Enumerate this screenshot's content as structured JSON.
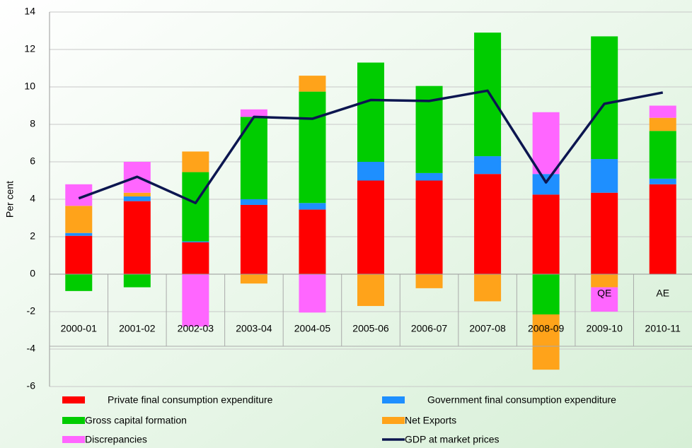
{
  "chart_data": {
    "type": "stacked-bar-line",
    "y_label": "Per cent",
    "categories": [
      "2000-01",
      "2001-02",
      "2002-03",
      "2003-04",
      "2004-05",
      "2005-06",
      "2006-07",
      "2007-08",
      "2008-09",
      "2009-10",
      "2010-11"
    ],
    "series": [
      {
        "name": "Private final consumption expenditure",
        "color": "#ff0000",
        "kind": "bar",
        "values": [
          2.05,
          3.9,
          1.7,
          3.7,
          3.45,
          5.0,
          5.0,
          5.35,
          4.25,
          4.35,
          4.8
        ]
      },
      {
        "name": "Government final consumption expenditure",
        "color": "#1e8fff",
        "kind": "bar",
        "values": [
          0.15,
          0.25,
          0.05,
          0.3,
          0.35,
          1.0,
          0.4,
          0.95,
          1.1,
          1.8,
          0.3
        ]
      },
      {
        "name": "Gross capital formation",
        "color": "#00cc00",
        "kind": "bar",
        "values": [
          -0.9,
          -0.7,
          3.7,
          4.4,
          5.95,
          5.3,
          4.65,
          6.6,
          -2.15,
          6.55,
          2.55
        ]
      },
      {
        "name": "Net Exports",
        "color": "#ffa31a",
        "kind": "bar",
        "values": [
          1.45,
          0.2,
          1.1,
          -0.5,
          0.85,
          -1.7,
          -0.75,
          -1.45,
          -2.95,
          -0.7,
          0.7
        ]
      },
      {
        "name": "Discrepancies",
        "color": "#ff66ff",
        "kind": "bar",
        "values": [
          1.15,
          1.65,
          -2.8,
          0.4,
          -2.05,
          0,
          0,
          0,
          3.3,
          -1.3,
          0.65
        ]
      },
      {
        "name": "GDP at  market prices",
        "color": "#0c1650",
        "kind": "line",
        "values": [
          4.05,
          5.2,
          3.8,
          8.4,
          8.3,
          9.3,
          9.25,
          9.8,
          4.9,
          9.1,
          9.7
        ]
      }
    ],
    "annotations": [
      {
        "category": 9,
        "text": "QE"
      },
      {
        "category": 10,
        "text": "AE"
      }
    ],
    "ylim": [
      -6,
      14
    ],
    "yticks": [
      -6,
      -4,
      -2,
      0,
      2,
      4,
      6,
      8,
      10,
      12,
      14
    ],
    "grid": true
  }
}
